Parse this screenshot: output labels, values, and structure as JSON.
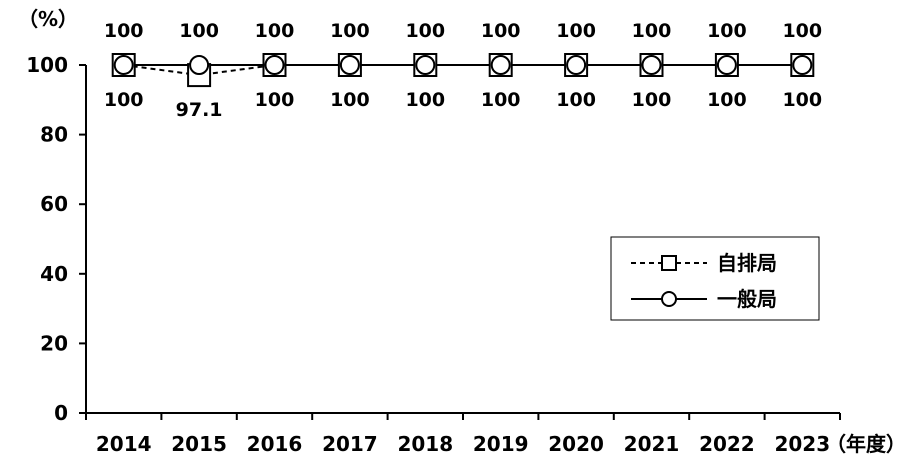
{
  "chart_data": {
    "type": "line",
    "categories": [
      "2014",
      "2015",
      "2016",
      "2017",
      "2018",
      "2019",
      "2020",
      "2021",
      "2022",
      "2023"
    ],
    "series": [
      {
        "name": "自排局",
        "values": [
          100,
          97.1,
          100,
          100,
          100,
          100,
          100,
          100,
          100,
          100
        ],
        "labels": [
          "100",
          "97.1",
          "100",
          "100",
          "100",
          "100",
          "100",
          "100",
          "100",
          "100"
        ],
        "label_position": "below",
        "line_style": "dashed",
        "marker": "square"
      },
      {
        "name": "一般局",
        "values": [
          100,
          100,
          100,
          100,
          100,
          100,
          100,
          100,
          100,
          100
        ],
        "labels": [
          "100",
          "100",
          "100",
          "100",
          "100",
          "100",
          "100",
          "100",
          "100",
          "100"
        ],
        "label_position": "above",
        "line_style": "solid",
        "marker": "circle"
      }
    ],
    "title": "",
    "xlabel": "（年度）",
    "ylabel": "（%）",
    "ylim": [
      0,
      100
    ],
    "yticks": [
      0,
      20,
      40,
      60,
      80,
      100
    ],
    "grid": false,
    "legend_position": "right"
  }
}
